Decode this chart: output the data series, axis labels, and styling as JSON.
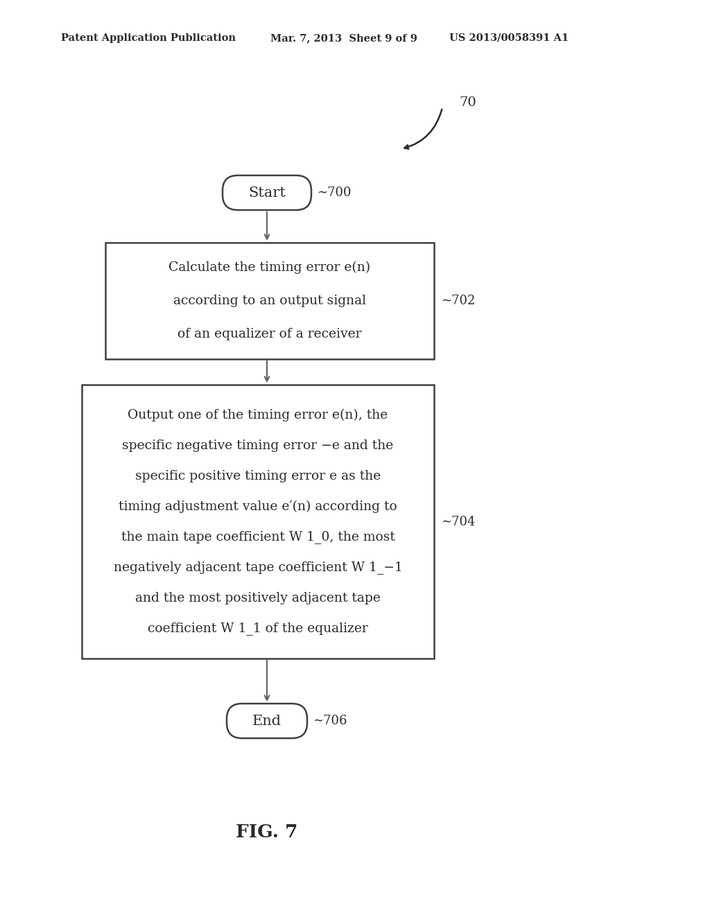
{
  "background_color": "#ffffff",
  "header_left": "Patent Application Publication",
  "header_mid": "Mar. 7, 2013  Sheet 9 of 9",
  "header_right": "US 2013/0058391 A1",
  "fig_label": "FIG. 7",
  "label_70": "70",
  "label_700": "700",
  "label_702": "702",
  "label_704": "704",
  "label_706": "706",
  "start_text": "Start",
  "end_text": "End",
  "box1_lines": [
    "Calculate the timing error e(n)",
    "according to an output signal",
    "of an equalizer of a receiver"
  ],
  "box2_lines": [
    "Output one of the timing error e(n), the",
    "specific negative timing error −e and the",
    "specific positive timing error e as the",
    "timing adjustment value e′(n) according to",
    "the main tape coefficient W 1_0, the most",
    "negatively adjacent tape coefficient W 1_−1",
    "and the most positively adjacent tape",
    "coefficient W 1_1 of the equalizer"
  ],
  "font_color": "#2a2a2a",
  "line_color": "#404040",
  "arrow_color": "#606060",
  "header_fontsize": 10.5,
  "body_fontsize": 13.5,
  "label_fontsize": 13
}
